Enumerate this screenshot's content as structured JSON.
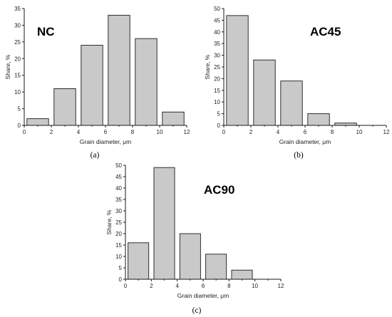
{
  "chart_data": [
    {
      "type": "bar",
      "title": "NC",
      "caption": "(a)",
      "xlabel": "Grain diameter, μm",
      "ylabel": "Share, %",
      "x": [
        1,
        3,
        5,
        7,
        9,
        11
      ],
      "values": [
        2,
        11,
        24,
        33,
        26,
        4
      ],
      "bin_width": 2,
      "xlim": [
        0,
        12
      ],
      "ylim": [
        0,
        35
      ],
      "xticks": [
        "0",
        "2",
        "4",
        "6",
        "8",
        "10",
        "12"
      ],
      "yticks": [
        "0",
        "5",
        "10",
        "15",
        "20",
        "25",
        "30",
        "35"
      ],
      "bar_color": "#c9c9c9"
    },
    {
      "type": "bar",
      "title": "AC45",
      "caption": "(b)",
      "xlabel": "Grain diameter, μm",
      "ylabel": "Share, %",
      "x": [
        1,
        3,
        5,
        7,
        9
      ],
      "values": [
        47,
        28,
        19,
        5,
        1
      ],
      "bin_width": 2,
      "xlim": [
        0,
        12
      ],
      "ylim": [
        0,
        50
      ],
      "xticks": [
        "0",
        "2",
        "4",
        "6",
        "8",
        "10",
        "12"
      ],
      "yticks": [
        "0",
        "5",
        "10",
        "15",
        "20",
        "25",
        "30",
        "35",
        "40",
        "45",
        "50"
      ],
      "bar_color": "#c9c9c9"
    },
    {
      "type": "bar",
      "title": "AC90",
      "caption": "(c)",
      "xlabel": "Grain diameter, μm",
      "ylabel": "Share, %",
      "x": [
        1,
        3,
        5,
        7,
        9
      ],
      "values": [
        16,
        49,
        20,
        11,
        4
      ],
      "bin_width": 2,
      "xlim": [
        0,
        12
      ],
      "ylim": [
        0,
        50
      ],
      "xticks": [
        "0",
        "2",
        "4",
        "6",
        "8",
        "10",
        "12"
      ],
      "yticks": [
        "0",
        "5",
        "10",
        "15",
        "20",
        "25",
        "30",
        "35",
        "40",
        "45",
        "50"
      ],
      "bar_color": "#c9c9c9"
    }
  ]
}
